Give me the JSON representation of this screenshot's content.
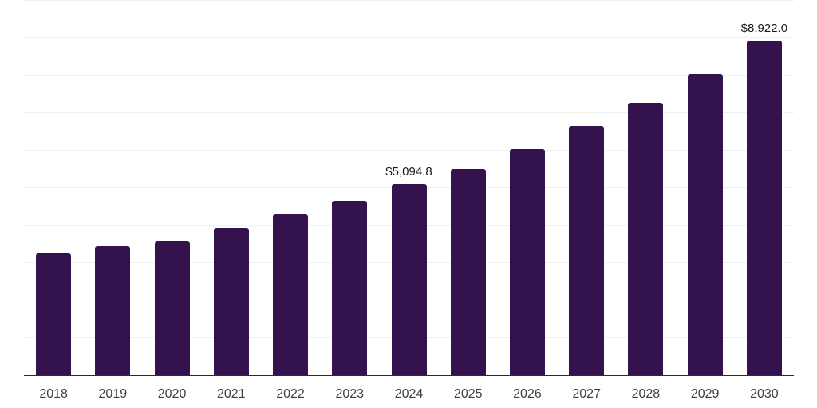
{
  "chart_data": {
    "type": "bar",
    "title": "",
    "xlabel": "",
    "ylabel": "",
    "categories": [
      "2018",
      "2019",
      "2020",
      "2021",
      "2022",
      "2023",
      "2024",
      "2025",
      "2026",
      "2027",
      "2028",
      "2029",
      "2030"
    ],
    "values": [
      3230,
      3420,
      3550,
      3910,
      4270,
      4630,
      5094.8,
      5500,
      6030,
      6630,
      7260,
      8030,
      8922
    ],
    "value_labels": [
      "",
      "",
      "",
      "",
      "",
      "",
      "$5,094.8",
      "",
      "",
      "",
      "",
      "",
      "$8,922.0"
    ],
    "ylim": [
      0,
      10000
    ],
    "gridline_interval": 1000,
    "grid": "horizontal",
    "legend": "none",
    "colors": {
      "bar": "#33124E",
      "axis_line": "#2b2b2b",
      "gridline": "#efefef",
      "value_label": "#1a1a1a",
      "tick_label": "#404040",
      "background": "#ffffff"
    }
  }
}
